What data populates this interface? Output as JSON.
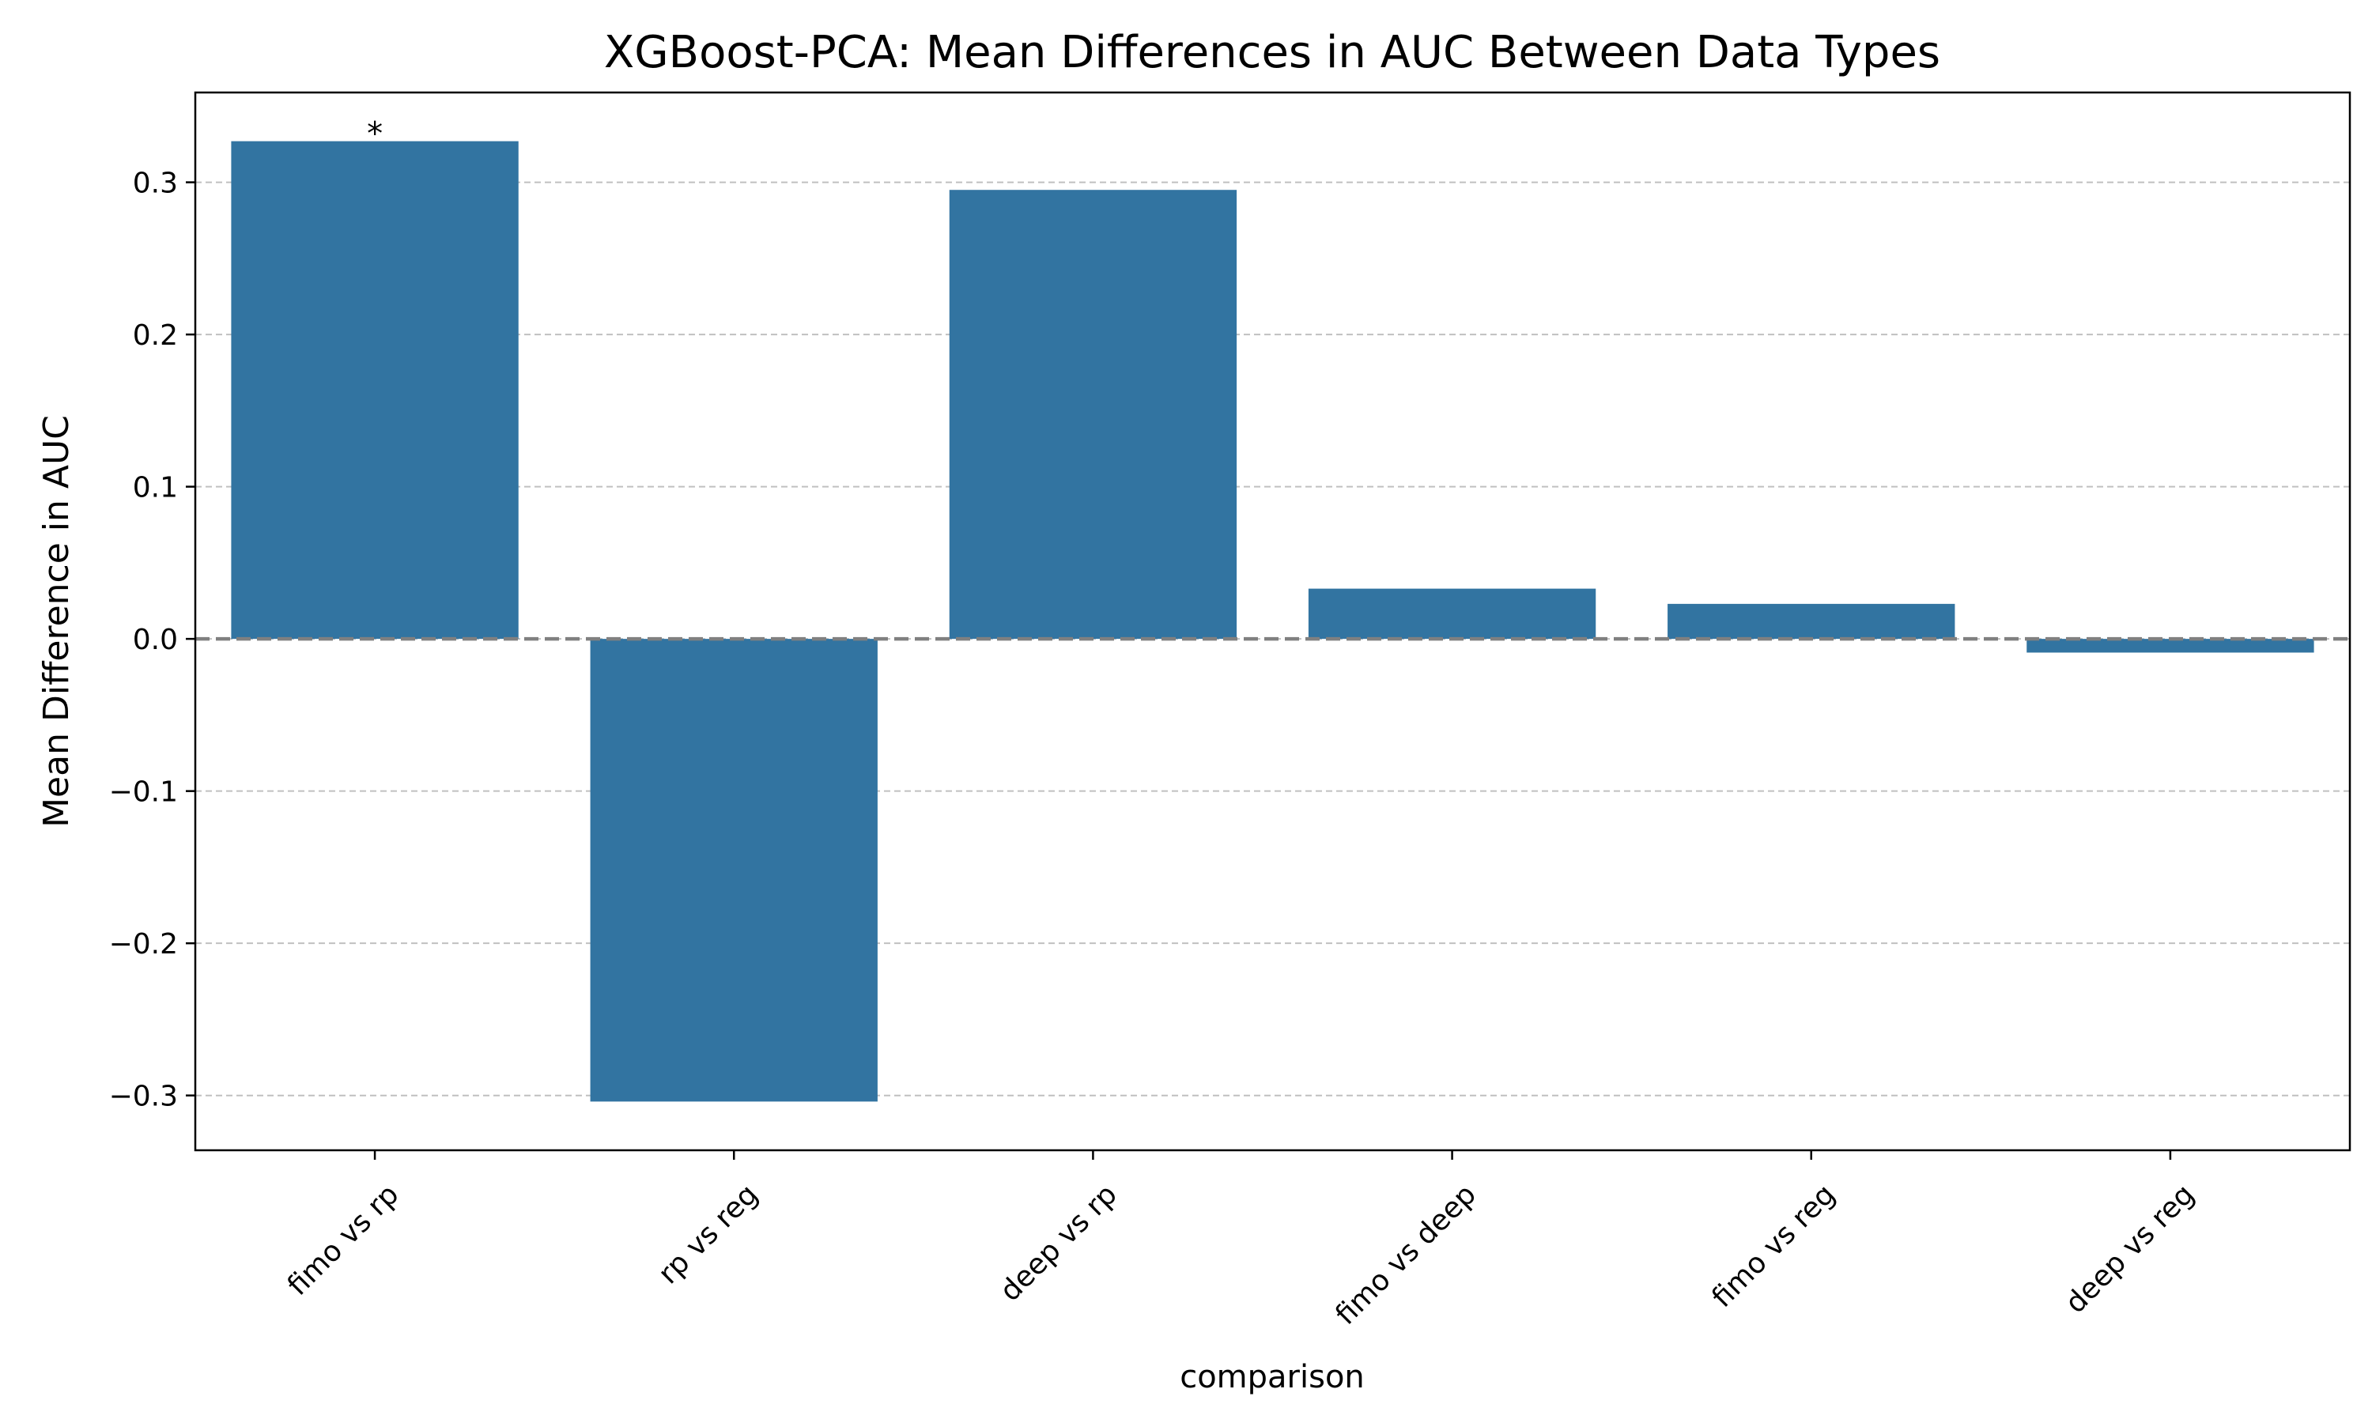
{
  "chart_data": {
    "type": "bar",
    "title": "XGBoost-PCA: Mean Differences in AUC Between Data Types",
    "xlabel": "comparison",
    "ylabel": "Mean Difference in AUC",
    "categories": [
      "fimo vs rp",
      "rp vs reg",
      "deep vs rp",
      "fimo vs deep",
      "fimo vs reg",
      "deep vs reg"
    ],
    "values": [
      0.327,
      -0.304,
      0.295,
      0.033,
      0.023,
      -0.009
    ],
    "significance": [
      "*",
      "",
      "",
      "",
      "",
      ""
    ],
    "ylim": [
      -0.336,
      0.359
    ],
    "yticks": [
      -0.3,
      -0.2,
      -0.1,
      0.0,
      0.1,
      0.2,
      0.3
    ],
    "ytick_labels": [
      "−0.3",
      "−0.2",
      "−0.1",
      "0.0",
      "0.1",
      "0.2",
      "0.3"
    ],
    "grid": "y-dashed",
    "reference_line": 0,
    "bar_color": "#3274a1",
    "grid_color": "#c0c0c0",
    "reference_line_color": "#808080"
  }
}
